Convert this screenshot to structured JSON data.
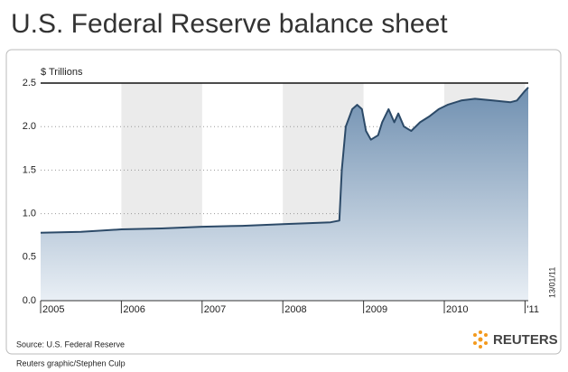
{
  "chart_data": {
    "type": "area",
    "title": "U.S. Federal Reserve balance sheet",
    "y_label": "$ Trillions",
    "source": "Source: U.S. Federal Reserve",
    "credit": "Reuters graphic/Stephen Culp",
    "brand": "REUTERS",
    "date_note": "13/01/11",
    "x": [
      2005.0,
      2005.5,
      2006.0,
      2006.5,
      2007.0,
      2007.5,
      2008.0,
      2008.3,
      2008.59,
      2008.7,
      2008.73,
      2008.78,
      2008.86,
      2008.92,
      2008.98,
      2009.03,
      2009.09,
      2009.18,
      2009.23,
      2009.31,
      2009.38,
      2009.43,
      2009.5,
      2009.59,
      2009.7,
      2009.82,
      2009.93,
      2010.04,
      2010.21,
      2010.38,
      2010.6,
      2010.82,
      2010.9,
      2010.99,
      2011.04
    ],
    "values": [
      0.78,
      0.79,
      0.82,
      0.83,
      0.85,
      0.86,
      0.88,
      0.89,
      0.9,
      0.92,
      1.5,
      2.0,
      2.2,
      2.25,
      2.2,
      1.95,
      1.85,
      1.9,
      2.05,
      2.2,
      2.05,
      2.15,
      2.0,
      1.95,
      2.05,
      2.12,
      2.2,
      2.25,
      2.3,
      2.32,
      2.3,
      2.28,
      2.3,
      2.4,
      2.45
    ],
    "color": "#2c4a68",
    "xlim": [
      2005,
      2011.04
    ],
    "xticks": [
      2005,
      2006,
      2007,
      2008,
      2009,
      2010,
      {
        "value": 2011,
        "label": "'11"
      }
    ],
    "ylim": [
      0,
      2.5
    ],
    "yticks": [
      {
        "value": 0,
        "label": "0.0"
      },
      0.5,
      {
        "value": 1,
        "label": "1.0"
      },
      1.5,
      {
        "value": 2,
        "label": "2.0"
      },
      2.5
    ],
    "grid": true
  }
}
